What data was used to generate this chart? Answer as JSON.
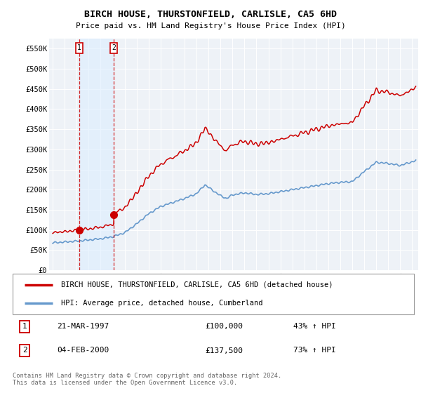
{
  "title": "BIRCH HOUSE, THURSTONFIELD, CARLISLE, CA5 6HD",
  "subtitle": "Price paid vs. HM Land Registry's House Price Index (HPI)",
  "ylabel_ticks": [
    "£0",
    "£50K",
    "£100K",
    "£150K",
    "£200K",
    "£250K",
    "£300K",
    "£350K",
    "£400K",
    "£450K",
    "£500K",
    "£550K"
  ],
  "ytick_values": [
    0,
    50000,
    100000,
    150000,
    200000,
    250000,
    300000,
    350000,
    400000,
    450000,
    500000,
    550000
  ],
  "ylim": [
    0,
    575000
  ],
  "xlim_start": 1994.7,
  "xlim_end": 2025.5,
  "sale1_date": 1997.22,
  "sale1_price": 100000,
  "sale2_date": 2000.09,
  "sale2_price": 137500,
  "hpi_line_color": "#6699cc",
  "price_line_color": "#cc0000",
  "marker_color": "#cc0000",
  "vline_color": "#cc0000",
  "vline_shade_color": "#ddeeff",
  "plot_bg_color": "#eef2f7",
  "legend_label_red": "BIRCH HOUSE, THURSTONFIELD, CARLISLE, CA5 6HD (detached house)",
  "legend_label_blue": "HPI: Average price, detached house, Cumberland",
  "table_row1": [
    "1",
    "21-MAR-1997",
    "£100,000",
    "43% ↑ HPI"
  ],
  "table_row2": [
    "2",
    "04-FEB-2000",
    "£137,500",
    "73% ↑ HPI"
  ],
  "footer": "Contains HM Land Registry data © Crown copyright and database right 2024.\nThis data is licensed under the Open Government Licence v3.0."
}
